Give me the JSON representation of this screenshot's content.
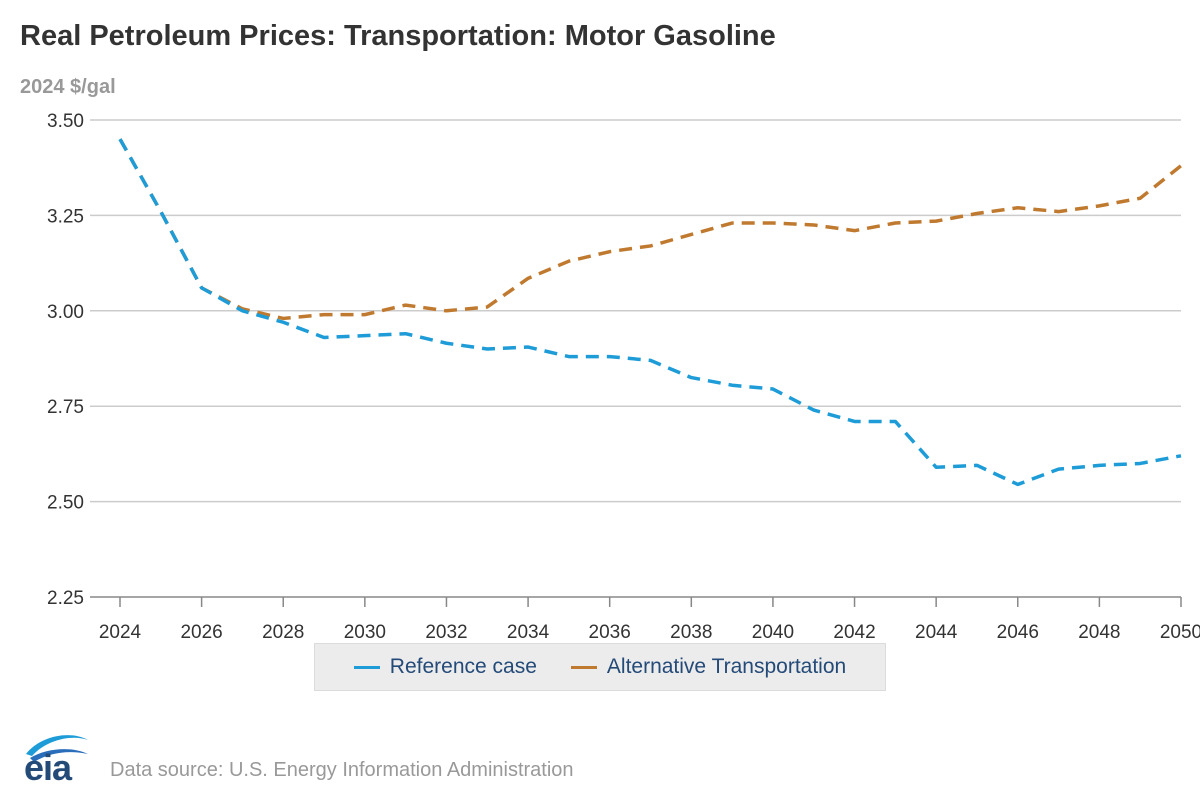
{
  "title": "Real Petroleum Prices: Transportation: Motor Gasoline",
  "unit_label": "2024 $/gal",
  "source": "Data source: U.S. Energy Information Administration",
  "logo_text": "eia",
  "colors": {
    "reference": "#1e9cd7",
    "alternative": "#c07a30",
    "grid": "#cccccc",
    "axis_text": "#333333",
    "legend_text": "#244a78"
  },
  "chart_data": {
    "type": "line",
    "x": [
      2024,
      2025,
      2026,
      2027,
      2028,
      2029,
      2030,
      2031,
      2032,
      2033,
      2034,
      2035,
      2036,
      2037,
      2038,
      2039,
      2040,
      2041,
      2042,
      2043,
      2044,
      2045,
      2046,
      2047,
      2048,
      2049,
      2050
    ],
    "series": [
      {
        "name": "Reference case",
        "color": "#1e9cd7",
        "dash": "dashed",
        "values": [
          3.45,
          3.26,
          3.06,
          3.0,
          2.97,
          2.93,
          2.935,
          2.94,
          2.915,
          2.9,
          2.905,
          2.88,
          2.88,
          2.87,
          2.825,
          2.805,
          2.795,
          2.74,
          2.71,
          2.71,
          2.59,
          2.595,
          2.545,
          2.585,
          2.595,
          2.6,
          2.62
        ]
      },
      {
        "name": "Alternative Transportation",
        "color": "#c07a30",
        "dash": "dashed",
        "values": [
          3.45,
          3.26,
          3.06,
          3.005,
          2.98,
          2.99,
          2.99,
          3.015,
          3.0,
          3.01,
          3.085,
          3.13,
          3.155,
          3.17,
          3.2,
          3.23,
          3.23,
          3.225,
          3.21,
          3.23,
          3.235,
          3.255,
          3.27,
          3.26,
          3.275,
          3.295,
          3.38
        ]
      }
    ],
    "xlim": [
      2024,
      2050
    ],
    "ylim": [
      2.25,
      3.5
    ],
    "xticks": [
      "2024",
      "2026",
      "2028",
      "2030",
      "2032",
      "2034",
      "2036",
      "2038",
      "2040",
      "2042",
      "2044",
      "2046",
      "2048",
      "2050"
    ],
    "yticks": [
      "3.50",
      "3.25",
      "3.00",
      "2.75",
      "2.50",
      "2.25"
    ],
    "grid": true,
    "legend": "bottom-center"
  }
}
